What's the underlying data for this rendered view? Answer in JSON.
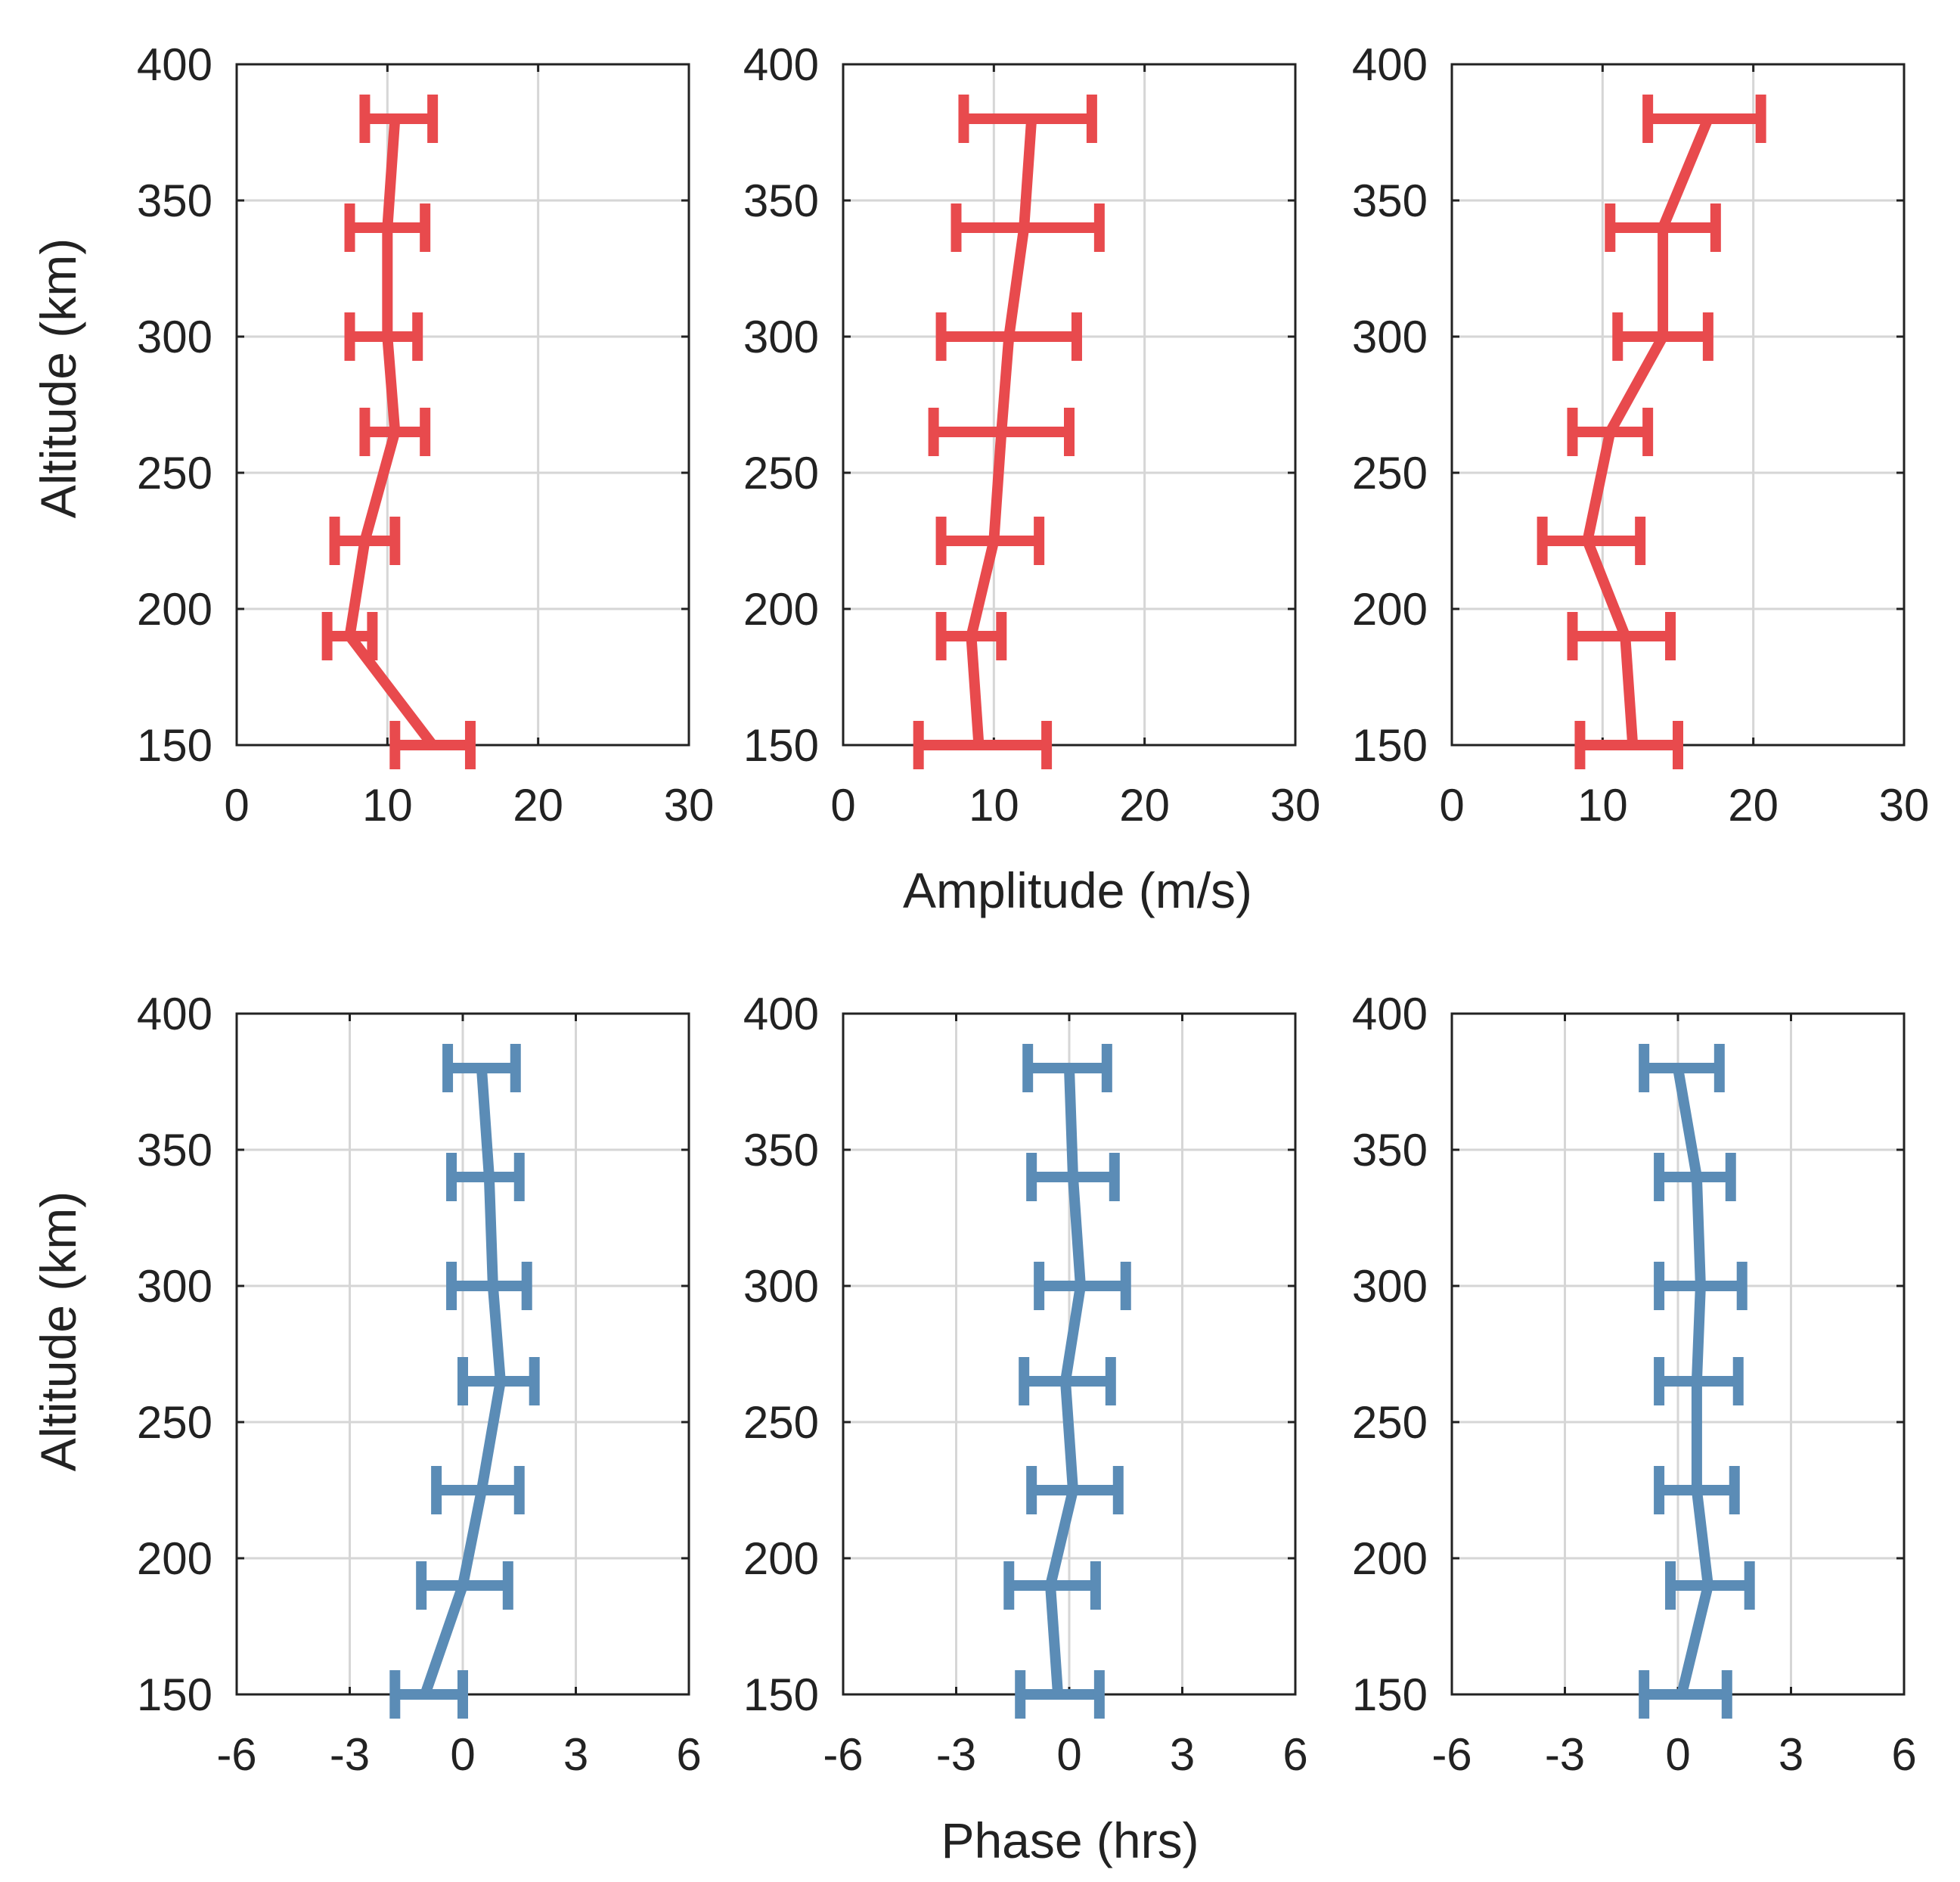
{
  "colors": {
    "amplitude": "#e84a4d",
    "phase": "#5b8cb6",
    "axis": "#222222",
    "grid": "#d6d6d6"
  },
  "labels": {
    "ylabel": "Altitude (km)",
    "amplitude_xlabel": "Amplitude (m/s)",
    "phase_xlabel": "Phase (hrs)"
  },
  "chart_data": [
    {
      "name": "amplitude-left",
      "type": "line",
      "series_color_key": "amplitude",
      "xlim": [
        0,
        30
      ],
      "ylim": [
        150,
        400
      ],
      "xticks": [
        0,
        10,
        20,
        30
      ],
      "xtick_labels": [
        "0",
        "10",
        "20",
        "30"
      ],
      "yticks": [
        150,
        200,
        250,
        300,
        350,
        400
      ],
      "ytick_labels": [
        "150",
        "200",
        "250",
        "300",
        "350",
        "400"
      ],
      "altitude": [
        150,
        190,
        225,
        265,
        300,
        340,
        380
      ],
      "values": [
        13.0,
        7.5,
        8.5,
        10.5,
        10.0,
        10.0,
        10.5
      ],
      "err_low": [
        10.5,
        6.0,
        6.5,
        8.5,
        7.5,
        7.5,
        8.5
      ],
      "err_high": [
        15.5,
        9.0,
        10.5,
        12.5,
        12.0,
        12.5,
        13.0
      ]
    },
    {
      "name": "amplitude-middle",
      "type": "line",
      "series_color_key": "amplitude",
      "xlim": [
        0,
        30
      ],
      "ylim": [
        150,
        400
      ],
      "xticks": [
        0,
        10,
        20,
        30
      ],
      "xtick_labels": [
        "0",
        "10",
        "20",
        "30"
      ],
      "yticks": [
        150,
        200,
        250,
        300,
        350,
        400
      ],
      "ytick_labels": [
        "150",
        "200",
        "250",
        "300",
        "350",
        "400"
      ],
      "altitude": [
        150,
        190,
        225,
        265,
        300,
        340,
        380
      ],
      "values": [
        9.0,
        8.5,
        10.0,
        10.5,
        11.0,
        12.0,
        12.5
      ],
      "err_low": [
        5.0,
        6.5,
        6.5,
        6.0,
        6.5,
        7.5,
        8.0
      ],
      "err_high": [
        13.5,
        10.5,
        13.0,
        15.0,
        15.5,
        17.0,
        16.5
      ]
    },
    {
      "name": "amplitude-right",
      "type": "line",
      "series_color_key": "amplitude",
      "xlim": [
        0,
        30
      ],
      "ylim": [
        150,
        400
      ],
      "xticks": [
        0,
        10,
        20,
        30
      ],
      "xtick_labels": [
        "0",
        "10",
        "20",
        "30"
      ],
      "yticks": [
        150,
        200,
        250,
        300,
        350,
        400
      ],
      "ytick_labels": [
        "150",
        "200",
        "250",
        "300",
        "350",
        "400"
      ],
      "altitude": [
        150,
        190,
        225,
        265,
        300,
        340,
        380
      ],
      "values": [
        12.0,
        11.5,
        9.0,
        10.5,
        14.0,
        14.0,
        17.0
      ],
      "err_low": [
        8.5,
        8.0,
        6.0,
        8.0,
        11.0,
        10.5,
        13.0
      ],
      "err_high": [
        15.0,
        14.5,
        12.5,
        13.0,
        17.0,
        17.5,
        20.5
      ]
    },
    {
      "name": "phase-left",
      "type": "line",
      "series_color_key": "phase",
      "xlim": [
        -6,
        6
      ],
      "ylim": [
        150,
        400
      ],
      "xticks": [
        -6,
        -3,
        0,
        3,
        6
      ],
      "xtick_labels": [
        "-6",
        "-3",
        "0",
        "3",
        "6"
      ],
      "yticks": [
        150,
        200,
        250,
        300,
        350,
        400
      ],
      "ytick_labels": [
        "150",
        "200",
        "250",
        "300",
        "350",
        "400"
      ],
      "altitude": [
        150,
        190,
        225,
        265,
        300,
        340,
        380
      ],
      "values": [
        -1.0,
        0.0,
        0.5,
        1.0,
        0.8,
        0.7,
        0.5
      ],
      "err_low": [
        -1.8,
        -1.1,
        -0.7,
        0.0,
        -0.3,
        -0.3,
        -0.4
      ],
      "err_high": [
        0.0,
        1.2,
        1.5,
        1.9,
        1.7,
        1.5,
        1.4
      ]
    },
    {
      "name": "phase-middle",
      "type": "line",
      "series_color_key": "phase",
      "xlim": [
        -6,
        6
      ],
      "ylim": [
        150,
        400
      ],
      "xticks": [
        -6,
        -3,
        0,
        3,
        6
      ],
      "xtick_labels": [
        "-6",
        "-3",
        "0",
        "3",
        "6"
      ],
      "yticks": [
        150,
        200,
        250,
        300,
        350,
        400
      ],
      "ytick_labels": [
        "150",
        "200",
        "250",
        "300",
        "350",
        "400"
      ],
      "altitude": [
        150,
        190,
        225,
        265,
        300,
        340,
        380
      ],
      "values": [
        -0.3,
        -0.5,
        0.1,
        -0.1,
        0.3,
        0.1,
        0.0
      ],
      "err_low": [
        -1.3,
        -1.6,
        -1.0,
        -1.2,
        -0.8,
        -1.0,
        -1.1
      ],
      "err_high": [
        0.8,
        0.7,
        1.3,
        1.1,
        1.5,
        1.2,
        1.0
      ]
    },
    {
      "name": "phase-right",
      "type": "line",
      "series_color_key": "phase",
      "xlim": [
        -6,
        6
      ],
      "ylim": [
        150,
        400
      ],
      "xticks": [
        -6,
        -3,
        0,
        3,
        6
      ],
      "xtick_labels": [
        "-6",
        "-3",
        "0",
        "3",
        "6"
      ],
      "yticks": [
        150,
        200,
        250,
        300,
        350,
        400
      ],
      "ytick_labels": [
        "150",
        "200",
        "250",
        "300",
        "350",
        "400"
      ],
      "altitude": [
        150,
        190,
        225,
        265,
        300,
        340,
        380
      ],
      "values": [
        0.1,
        0.8,
        0.5,
        0.5,
        0.6,
        0.5,
        0.0
      ],
      "err_low": [
        -0.9,
        -0.2,
        -0.5,
        -0.5,
        -0.5,
        -0.5,
        -0.9
      ],
      "err_high": [
        1.3,
        1.9,
        1.5,
        1.6,
        1.7,
        1.4,
        1.1
      ]
    }
  ]
}
